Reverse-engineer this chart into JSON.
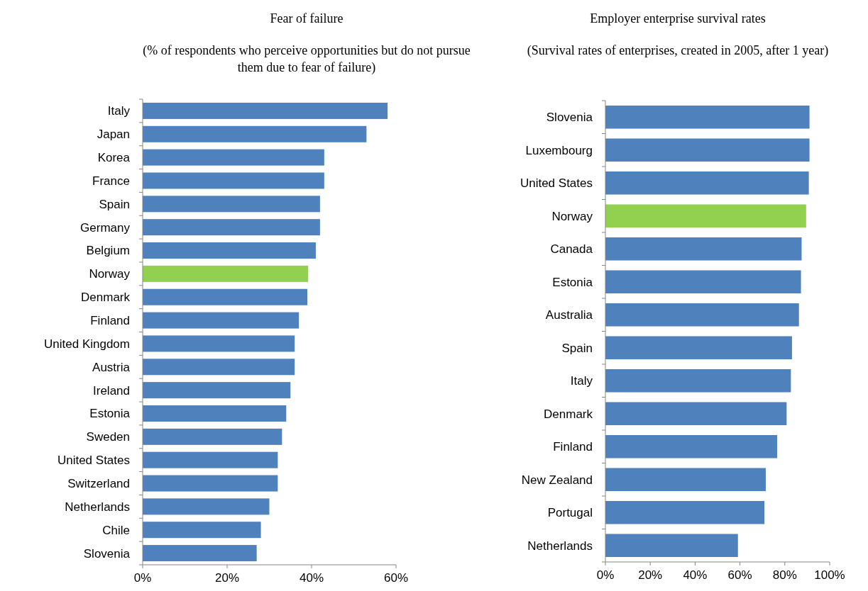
{
  "chart_data": [
    {
      "type": "bar",
      "orientation": "horizontal",
      "title": "Fear of failure",
      "subtitle": "(% of respondents who perceive opportunities but do not pursue them due to fear of failure)",
      "categories": [
        "Italy",
        "Japan",
        "Korea",
        "France",
        "Spain",
        "Germany",
        "Belgium",
        "Norway",
        "Denmark",
        "Finland",
        "United Kingdom",
        "Austria",
        "Ireland",
        "Estonia",
        "Sweden",
        "United States",
        "Switzerland",
        "Netherlands",
        "Chile",
        "Slovenia"
      ],
      "values": [
        58,
        53,
        43,
        43,
        42,
        42,
        41,
        39.2,
        39,
        37,
        36,
        36,
        35,
        34,
        33,
        32,
        32,
        30,
        28,
        27
      ],
      "colors": [
        "#4f81bd",
        "#4f81bd",
        "#4f81bd",
        "#4f81bd",
        "#4f81bd",
        "#4f81bd",
        "#4f81bd",
        "#92d050",
        "#4f81bd",
        "#4f81bd",
        "#4f81bd",
        "#4f81bd",
        "#4f81bd",
        "#4f81bd",
        "#4f81bd",
        "#4f81bd",
        "#4f81bd",
        "#4f81bd",
        "#4f81bd",
        "#4f81bd"
      ],
      "xlim": [
        0,
        60
      ],
      "xticks": [
        {
          "value": 0,
          "label": "0%"
        },
        {
          "value": 20,
          "label": "20%"
        },
        {
          "value": 40,
          "label": "40%"
        },
        {
          "value": 60,
          "label": "60%"
        }
      ],
      "grid": false
    },
    {
      "type": "bar",
      "orientation": "horizontal",
      "title": "Employer enterprise survival rates",
      "subtitle": "(Survival rates of enterprises, created in 2005, after 1 year)",
      "categories": [
        "Slovenia",
        "Luxembourg",
        "United States",
        "Norway",
        "Canada",
        "Estonia",
        "Australia",
        "Spain",
        "Italy",
        "Denmark",
        "Finland",
        "New Zealand",
        "Portugal",
        "Netherlands"
      ],
      "values": [
        91,
        91,
        90.7,
        89.5,
        87.5,
        87.2,
        86.3,
        83.2,
        82.7,
        80.8,
        76.6,
        71.5,
        70.9,
        59.1
      ],
      "colors": [
        "#4f81bd",
        "#4f81bd",
        "#4f81bd",
        "#92d050",
        "#4f81bd",
        "#4f81bd",
        "#4f81bd",
        "#4f81bd",
        "#4f81bd",
        "#4f81bd",
        "#4f81bd",
        "#4f81bd",
        "#4f81bd",
        "#4f81bd"
      ],
      "xlim": [
        0,
        100
      ],
      "xticks": [
        {
          "value": 0,
          "label": "0%"
        },
        {
          "value": 20,
          "label": "20%"
        },
        {
          "value": 40,
          "label": "40%"
        },
        {
          "value": 60,
          "label": "60%"
        },
        {
          "value": 80,
          "label": "80%"
        },
        {
          "value": 100,
          "label": "100%"
        }
      ],
      "grid": false
    }
  ]
}
